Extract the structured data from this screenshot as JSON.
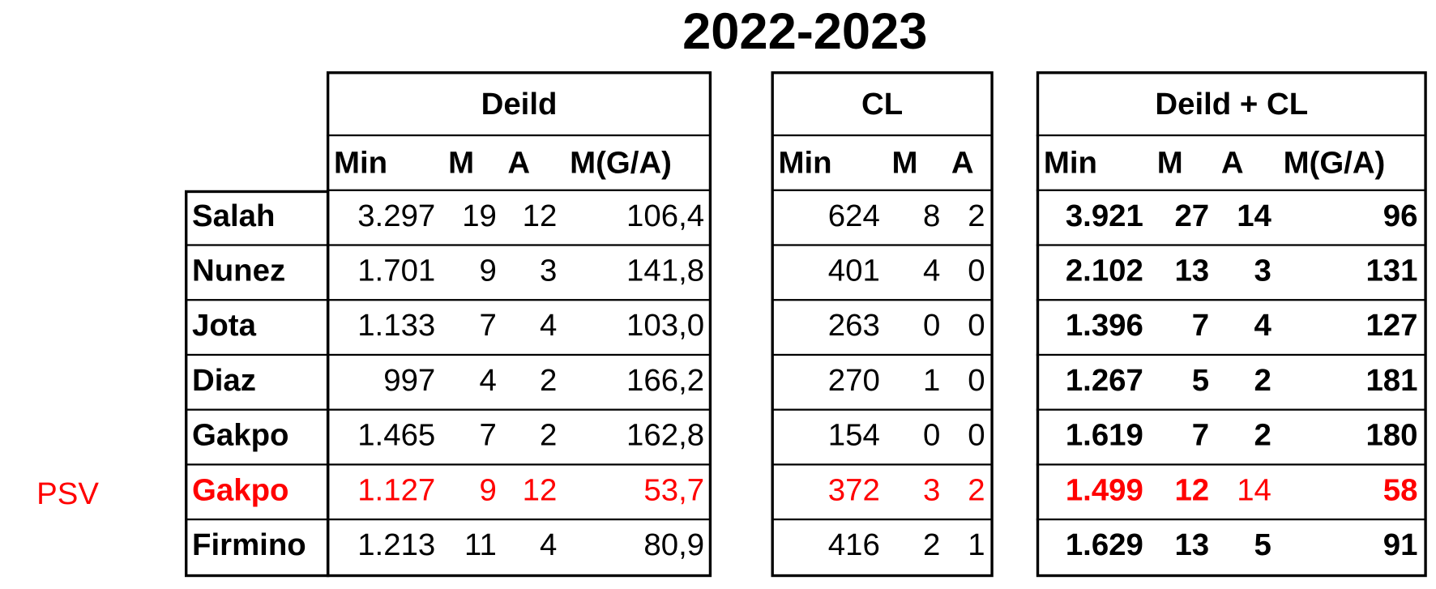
{
  "title": "2022-2023",
  "row_note": "PSV",
  "players": [
    "Salah",
    "Nunez",
    "Jota",
    "Diaz",
    "Gakpo",
    "Gakpo",
    "Firmino"
  ],
  "tables": [
    {
      "header": "Deild",
      "columns": [
        "Min",
        "M",
        "A",
        "M(G/A)"
      ],
      "rows": [
        [
          "3.297",
          "19",
          "12",
          "106,4"
        ],
        [
          "1.701",
          "9",
          "3",
          "141,8"
        ],
        [
          "1.133",
          "7",
          "4",
          "103,0"
        ],
        [
          "997",
          "4",
          "2",
          "166,2"
        ],
        [
          "1.465",
          "7",
          "2",
          "162,8"
        ],
        [
          "1.127",
          "9",
          "12",
          "53,7"
        ],
        [
          "1.213",
          "11",
          "4",
          "80,9"
        ]
      ]
    },
    {
      "header": "CL",
      "columns": [
        "Min",
        "M",
        "A"
      ],
      "rows": [
        [
          "624",
          "8",
          "2"
        ],
        [
          "401",
          "4",
          "0"
        ],
        [
          "263",
          "0",
          "0"
        ],
        [
          "270",
          "1",
          "0"
        ],
        [
          "154",
          "0",
          "0"
        ],
        [
          "372",
          "3",
          "2"
        ],
        [
          "416",
          "2",
          "1"
        ]
      ]
    },
    {
      "header": "Deild + CL",
      "columns": [
        "Min",
        "M",
        "A",
        "M(G/A)"
      ],
      "rows": [
        [
          "3.921",
          "27",
          "14",
          "96"
        ],
        [
          "2.102",
          "13",
          "3",
          "131"
        ],
        [
          "1.396",
          "7",
          "4",
          "127"
        ],
        [
          "1.267",
          "5",
          "2",
          "181"
        ],
        [
          "1.619",
          "7",
          "2",
          "180"
        ],
        [
          "1.499",
          "12",
          "14",
          "58"
        ],
        [
          "1.629",
          "13",
          "5",
          "91"
        ]
      ]
    }
  ]
}
